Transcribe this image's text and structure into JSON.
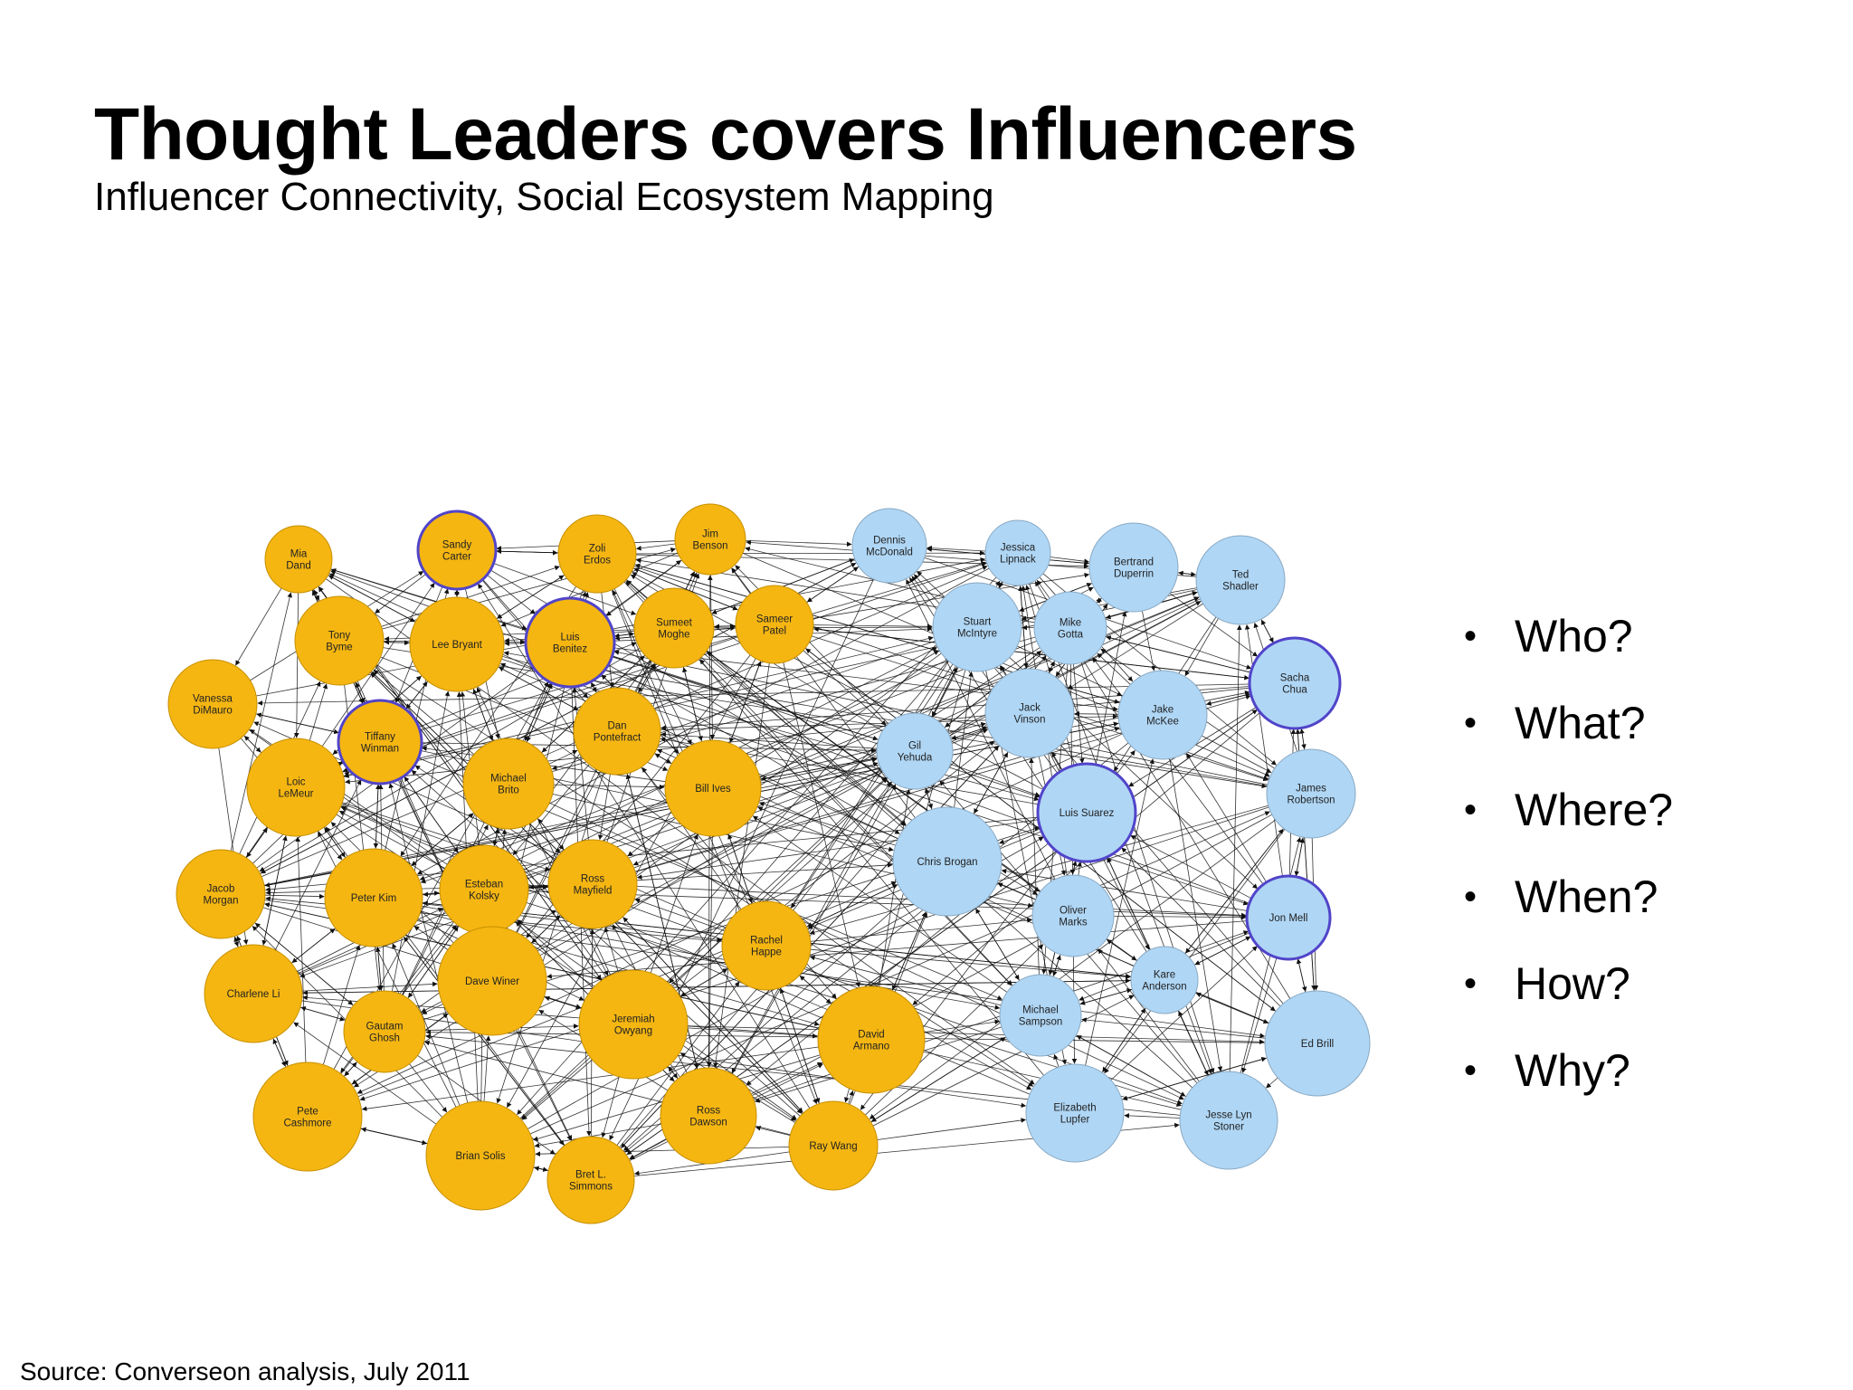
{
  "slide": {
    "title": "Thought Leaders covers Influencers",
    "subtitle": "Influencer Connectivity, Social Ecosystem Mapping",
    "source": "Source: Converseon analysis, July 2011"
  },
  "questions": [
    "Who?",
    "What?",
    "Where?",
    "When?",
    "How?",
    "Why?"
  ],
  "colors": {
    "group_a": "#f5b612",
    "group_a_stroke": "#c79000",
    "group_b": "#afd6f5",
    "group_b_stroke": "#8aa9c2",
    "highlight_ring": "#5144c9",
    "edge": "#111111"
  },
  "network": {
    "groups": [
      "group_a",
      "group_b"
    ],
    "nodes": [
      {
        "id": "mia",
        "label": [
          "Mia",
          "Dand"
        ],
        "group": "group_a"
      },
      {
        "id": "sandy",
        "label": [
          "Sandy",
          "Carter"
        ],
        "group": "group_a",
        "highlight": true
      },
      {
        "id": "zoli",
        "label": [
          "Zoli",
          "Erdos"
        ],
        "group": "group_a"
      },
      {
        "id": "jim",
        "label": [
          "Jim",
          "Benson"
        ],
        "group": "group_a"
      },
      {
        "id": "tony",
        "label": [
          "Tony",
          "Byme"
        ],
        "group": "group_a"
      },
      {
        "id": "lee",
        "label": [
          "Lee Bryant"
        ],
        "group": "group_a"
      },
      {
        "id": "luisb",
        "label": [
          "Luis",
          "Benitez"
        ],
        "group": "group_a",
        "highlight": true
      },
      {
        "id": "sumeet",
        "label": [
          "Sumeet",
          "Moghe"
        ],
        "group": "group_a"
      },
      {
        "id": "sameer",
        "label": [
          "Sameer",
          "Patel"
        ],
        "group": "group_a"
      },
      {
        "id": "vanessa",
        "label": [
          "Vanessa",
          "DiMauro"
        ],
        "group": "group_a"
      },
      {
        "id": "tiffany",
        "label": [
          "Tiffany",
          "Winman"
        ],
        "group": "group_a",
        "highlight": true
      },
      {
        "id": "dan",
        "label": [
          "Dan",
          "Pontefract"
        ],
        "group": "group_a"
      },
      {
        "id": "loic",
        "label": [
          "Loic",
          "LeMeur"
        ],
        "group": "group_a"
      },
      {
        "id": "michaelb",
        "label": [
          "Michael",
          "Brito"
        ],
        "group": "group_a"
      },
      {
        "id": "bill",
        "label": [
          "Bill Ives"
        ],
        "group": "group_a"
      },
      {
        "id": "jacob",
        "label": [
          "Jacob",
          "Morgan"
        ],
        "group": "group_a"
      },
      {
        "id": "peter",
        "label": [
          "Peter Kim"
        ],
        "group": "group_a"
      },
      {
        "id": "esteban",
        "label": [
          "Esteban",
          "Kolsky"
        ],
        "group": "group_a"
      },
      {
        "id": "ross_m",
        "label": [
          "Ross",
          "Mayfield"
        ],
        "group": "group_a"
      },
      {
        "id": "rachel",
        "label": [
          "Rachel",
          "Happe"
        ],
        "group": "group_a"
      },
      {
        "id": "charlene",
        "label": [
          "Charlene Li"
        ],
        "group": "group_a"
      },
      {
        "id": "dave_w",
        "label": [
          "Dave Winer"
        ],
        "group": "group_a"
      },
      {
        "id": "gautam",
        "label": [
          "Gautam",
          "Ghosh"
        ],
        "group": "group_a"
      },
      {
        "id": "jeremiah",
        "label": [
          "Jeremiah",
          "Owyang"
        ],
        "group": "group_a"
      },
      {
        "id": "david_a",
        "label": [
          "David",
          "Armano"
        ],
        "group": "group_a"
      },
      {
        "id": "pete",
        "label": [
          "Pete",
          "Cashmore"
        ],
        "group": "group_a"
      },
      {
        "id": "brian",
        "label": [
          "Brian Solis"
        ],
        "group": "group_a"
      },
      {
        "id": "ross_d",
        "label": [
          "Ross",
          "Dawson"
        ],
        "group": "group_a"
      },
      {
        "id": "bret",
        "label": [
          "Bret L.",
          "Simmons"
        ],
        "group": "group_a"
      },
      {
        "id": "ray",
        "label": [
          "Ray Wang"
        ],
        "group": "group_a"
      },
      {
        "id": "dennis",
        "label": [
          "Dennis",
          "McDonald"
        ],
        "group": "group_b"
      },
      {
        "id": "jessica",
        "label": [
          "Jessica",
          "Lipnack"
        ],
        "group": "group_b"
      },
      {
        "id": "bertrand",
        "label": [
          "Bertrand",
          "Duperrin"
        ],
        "group": "group_b"
      },
      {
        "id": "ted",
        "label": [
          "Ted",
          "Shadler"
        ],
        "group": "group_b"
      },
      {
        "id": "stuart",
        "label": [
          "Stuart",
          "McIntyre"
        ],
        "group": "group_b"
      },
      {
        "id": "mike",
        "label": [
          "Mike",
          "Gotta"
        ],
        "group": "group_b"
      },
      {
        "id": "sacha",
        "label": [
          "Sacha",
          "Chua"
        ],
        "group": "group_b",
        "highlight": true
      },
      {
        "id": "jack",
        "label": [
          "Jack",
          "Vinson"
        ],
        "group": "group_b"
      },
      {
        "id": "jake",
        "label": [
          "Jake",
          "McKee"
        ],
        "group": "group_b"
      },
      {
        "id": "gil",
        "label": [
          "Gil",
          "Yehuda"
        ],
        "group": "group_b"
      },
      {
        "id": "james",
        "label": [
          "James",
          "Robertson"
        ],
        "group": "group_b"
      },
      {
        "id": "luiss",
        "label": [
          "Luis Suarez"
        ],
        "group": "group_b",
        "highlight": true
      },
      {
        "id": "chris",
        "label": [
          "Chris Brogan"
        ],
        "group": "group_b"
      },
      {
        "id": "oliver",
        "label": [
          "Oliver",
          "Marks"
        ],
        "group": "group_b"
      },
      {
        "id": "jon",
        "label": [
          "Jon Mell"
        ],
        "group": "group_b",
        "highlight": true
      },
      {
        "id": "kare",
        "label": [
          "Kare",
          "Anderson"
        ],
        "group": "group_b"
      },
      {
        "id": "michaels",
        "label": [
          "Michael",
          "Sampson"
        ],
        "group": "group_b"
      },
      {
        "id": "ed",
        "label": [
          "Ed Brill"
        ],
        "group": "group_b"
      },
      {
        "id": "elizabeth",
        "label": [
          "Elizabeth",
          "Lupfer"
        ],
        "group": "group_b"
      },
      {
        "id": "jesse",
        "label": [
          "Jesse Lyn",
          "Stoner"
        ],
        "group": "group_b"
      }
    ]
  }
}
